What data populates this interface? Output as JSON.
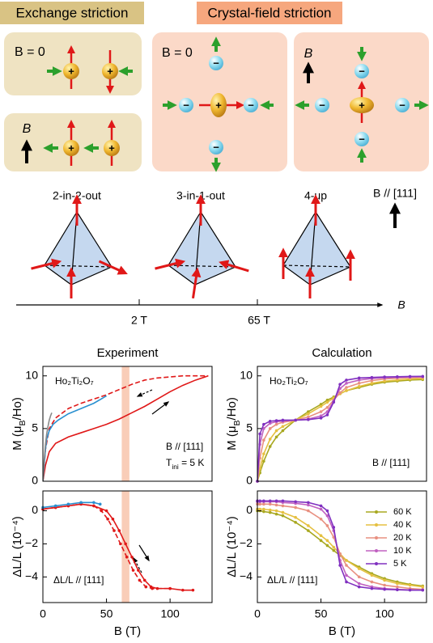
{
  "diagrams": {
    "exchange_title": "Exchange striction",
    "crystal_title": "Crystal-field striction",
    "panels": [
      {
        "label": "B = 0"
      },
      {
        "label": "B"
      },
      {
        "label": "B = 0"
      },
      {
        "label": "B"
      }
    ],
    "cation_sign": "+",
    "anion_sign": "−"
  },
  "spin_configs": {
    "labels": [
      "2-in-2-out",
      "3-in-1-out",
      "4-up"
    ],
    "field_direction": "B // [111]",
    "axis_label": "B",
    "axis_ticks": [
      "2 T",
      "65 T"
    ]
  },
  "chart_data": [
    {
      "type": "line",
      "title": "Experiment",
      "ylabel": [
        "M (μ",
        "B",
        "/Ho)"
      ],
      "annotations": [
        "Ho₂Ti₂O₇",
        "B // [111]",
        [
          "T",
          "ini",
          " = 5 K"
        ]
      ],
      "xlim": [
        0,
        133
      ],
      "ylim": [
        0,
        10.9
      ],
      "yticks": [
        0,
        5,
        10
      ],
      "highlight": [
        62,
        68
      ],
      "highlight_color": "#f9cdb8",
      "series": [
        {
          "color": "#e01818",
          "dash": false,
          "x": [
            0,
            2,
            5,
            10,
            20,
            30,
            40,
            50,
            60,
            70,
            80,
            90,
            100,
            110,
            120,
            130
          ],
          "values": [
            0,
            1.5,
            2.8,
            3.6,
            4.2,
            4.6,
            5.0,
            5.4,
            5.9,
            6.5,
            7.1,
            7.8,
            8.5,
            9.1,
            9.6,
            10.0
          ]
        },
        {
          "color": "#e01818",
          "dash": true,
          "x": [
            0,
            2,
            5,
            10,
            20,
            30,
            40,
            50,
            60,
            70,
            80,
            90,
            100,
            110,
            130
          ],
          "values": [
            0,
            3.0,
            5.0,
            6.0,
            6.9,
            7.4,
            7.8,
            8.2,
            8.7,
            9.2,
            9.6,
            9.8,
            9.9,
            10,
            10
          ]
        },
        {
          "color": "#2a90d0",
          "dash": false,
          "x": [
            0,
            1,
            2,
            3,
            5,
            8,
            12,
            20,
            30,
            40,
            50
          ],
          "values": [
            0,
            1.5,
            3,
            4,
            4.8,
            5.4,
            5.8,
            6.4,
            6.9,
            7.4,
            8.1
          ]
        },
        {
          "color": "#8a8a8a",
          "dash": false,
          "x": [
            0,
            1,
            2,
            3,
            4,
            5,
            6,
            7
          ],
          "values": [
            0,
            2,
            3.5,
            4.5,
            5.2,
            5.8,
            6.2,
            6.5
          ]
        }
      ]
    },
    {
      "type": "line",
      "xlabel": "B (T)",
      "ylabel": "ΔL/L (10⁻⁴)",
      "annotations": [
        "ΔL/L // [111]"
      ],
      "xlim": [
        0,
        133
      ],
      "ylim": [
        -5.55,
        1.2
      ],
      "xticks": [
        0,
        50,
        100
      ],
      "yticks": [
        0,
        {
          "value": -2,
          "label": "−2"
        },
        {
          "value": -4,
          "label": "−4"
        }
      ],
      "highlight": [
        62,
        68
      ],
      "highlight_color": "#f9cdb8",
      "series": [
        {
          "color": "#e01818",
          "dash": false,
          "markers": true,
          "x": [
            0,
            10,
            20,
            30,
            40,
            50,
            55,
            60,
            65,
            70,
            75,
            80,
            85,
            90,
            100,
            110,
            118
          ],
          "values": [
            0.1,
            0.2,
            0.3,
            0.4,
            0.3,
            0,
            -0.5,
            -1.2,
            -2,
            -2.8,
            -3.6,
            -4.2,
            -4.6,
            -4.7,
            -4.7,
            -4.8,
            -4.8
          ]
        },
        {
          "color": "#e01818",
          "dash": true,
          "markers": true,
          "x": [
            0,
            10,
            20,
            30,
            40,
            46,
            51,
            56,
            61,
            66,
            71,
            76,
            81,
            86,
            100
          ],
          "values": [
            0.1,
            0.2,
            0.3,
            0.4,
            0.3,
            0,
            -0.5,
            -1.2,
            -2,
            -2.8,
            -3.6,
            -4.2,
            -4.6,
            -4.7,
            -4.7
          ]
        },
        {
          "color": "#2a90d0",
          "dash": false,
          "markers": true,
          "x": [
            0,
            10,
            20,
            30,
            40,
            45
          ],
          "values": [
            0.2,
            0.3,
            0.4,
            0.5,
            0.5,
            0.4
          ]
        }
      ]
    },
    {
      "type": "line",
      "title": "Calculation",
      "ylabel": [
        "M (μ",
        "B",
        "/Ho)"
      ],
      "annotations": [
        "Ho₂Ti₂O₇",
        "B // [111]"
      ],
      "xlim": [
        0,
        133
      ],
      "ylim": [
        0,
        10.9
      ],
      "yticks": [
        0,
        5,
        10
      ],
      "markers": true,
      "x": [
        0,
        2,
        5,
        10,
        15,
        20,
        30,
        40,
        50,
        55,
        60,
        65,
        70,
        80,
        90,
        100,
        110,
        120,
        130
      ],
      "series": [
        {
          "color": "#a8a820",
          "values": [
            0,
            0.8,
            1.9,
            3.3,
            4.2,
            4.8,
            5.8,
            6.6,
            7.3,
            7.7,
            8.0,
            8.3,
            8.6,
            8.9,
            9.2,
            9.4,
            9.5,
            9.6,
            9.65
          ]
        },
        {
          "color": "#e5c040",
          "values": [
            0,
            1.2,
            2.6,
            4.0,
            4.8,
            5.2,
            5.8,
            6.4,
            7.1,
            7.5,
            7.9,
            8.3,
            8.6,
            9.0,
            9.3,
            9.5,
            9.6,
            9.7,
            9.75
          ]
        },
        {
          "color": "#e89080",
          "values": [
            0,
            2.2,
            3.9,
            5.0,
            5.4,
            5.6,
            5.8,
            6.1,
            6.6,
            7.0,
            7.7,
            8.4,
            8.9,
            9.3,
            9.55,
            9.7,
            9.78,
            9.83,
            9.87
          ]
        },
        {
          "color": "#c060c0",
          "values": [
            0,
            3.5,
            5.0,
            5.5,
            5.65,
            5.7,
            5.8,
            5.9,
            6.2,
            6.6,
            7.6,
            8.8,
            9.3,
            9.6,
            9.75,
            9.82,
            9.87,
            9.9,
            9.92
          ]
        },
        {
          "color": "#8030c0",
          "values": [
            0,
            4.5,
            5.4,
            5.7,
            5.75,
            5.8,
            5.8,
            5.85,
            6.0,
            6.3,
            7.5,
            9.2,
            9.6,
            9.8,
            9.85,
            9.9,
            9.92,
            9.95,
            9.96
          ]
        }
      ]
    },
    {
      "type": "line",
      "xlabel": "B (T)",
      "ylabel": "ΔL/L (10⁻⁴)",
      "annotations": [
        "ΔL/L // [111]"
      ],
      "xlim": [
        0,
        133
      ],
      "ylim": [
        -5.55,
        1.2
      ],
      "xticks": [
        0,
        50,
        100
      ],
      "yticks": [
        0,
        {
          "value": -2,
          "label": "−2"
        },
        {
          "value": -4,
          "label": "−4"
        }
      ],
      "markers": true,
      "legend": "upper right",
      "x": [
        0,
        2,
        5,
        10,
        15,
        20,
        30,
        40,
        50,
        55,
        60,
        65,
        70,
        80,
        90,
        100,
        110,
        120,
        130
      ],
      "series": [
        {
          "name": "60 K",
          "color": "#a8a820",
          "values": [
            0,
            0,
            -0.05,
            -0.1,
            -0.2,
            -0.3,
            -0.7,
            -1.2,
            -1.8,
            -2.1,
            -2.4,
            -2.7,
            -3.0,
            -3.4,
            -3.8,
            -4.1,
            -4.3,
            -4.45,
            -4.55
          ]
        },
        {
          "name": "40 K",
          "color": "#e5c040",
          "values": [
            0.1,
            0.1,
            0.1,
            0.05,
            0,
            -0.1,
            -0.4,
            -0.9,
            -1.5,
            -1.8,
            -2.2,
            -2.6,
            -3.0,
            -3.5,
            -3.9,
            -4.2,
            -4.4,
            -4.5,
            -4.6
          ]
        },
        {
          "name": "20 K",
          "color": "#e89080",
          "values": [
            0.4,
            0.4,
            0.4,
            0.4,
            0.35,
            0.3,
            0.2,
            0,
            -0.5,
            -0.9,
            -1.6,
            -2.6,
            -3.3,
            -4.0,
            -4.3,
            -4.5,
            -4.6,
            -4.7,
            -4.75
          ]
        },
        {
          "name": "10 K",
          "color": "#c060c0",
          "values": [
            0.55,
            0.55,
            0.55,
            0.55,
            0.55,
            0.5,
            0.45,
            0.35,
            0.1,
            -0.3,
            -1.2,
            -3.0,
            -3.9,
            -4.4,
            -4.6,
            -4.7,
            -4.75,
            -4.78,
            -4.8
          ]
        },
        {
          "name": "5 K",
          "color": "#8030c0",
          "values": [
            0.6,
            0.6,
            0.6,
            0.6,
            0.6,
            0.6,
            0.55,
            0.5,
            0.3,
            0,
            -1,
            -3.3,
            -4.3,
            -4.6,
            -4.7,
            -4.75,
            -4.78,
            -4.8,
            -4.8
          ]
        }
      ]
    }
  ]
}
